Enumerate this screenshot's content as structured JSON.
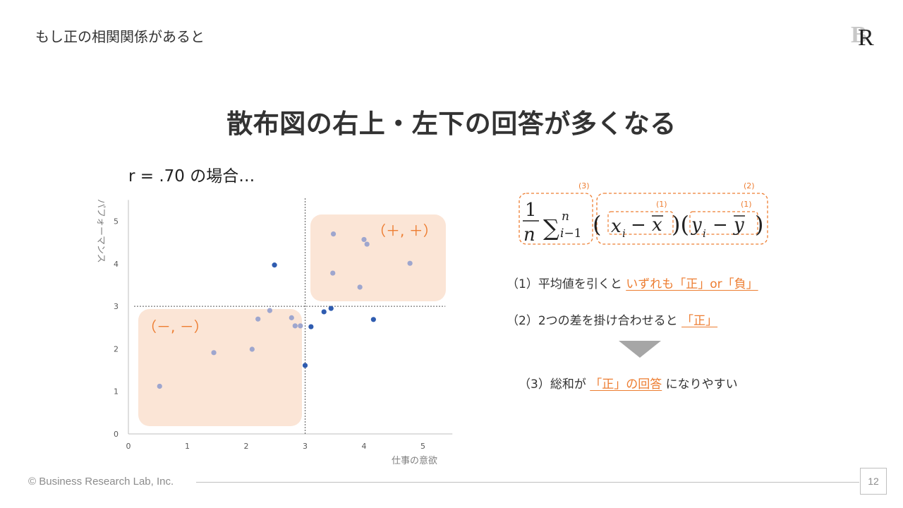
{
  "slide": {
    "title": "もし正の相関関係があると",
    "headline": "散布図の右上・左下の回答が多くなる",
    "case_label": "r = .70 の場合…",
    "page_number": "12",
    "copyright": "© Business Research Lab, Inc."
  },
  "quadrant_labels": {
    "positive": "（＋, ＋）",
    "negative": "（－, －）"
  },
  "formula": {
    "labels": {
      "outer": "(3)",
      "product": "(2)",
      "dev_x": "(1)",
      "dev_y": "(1)"
    }
  },
  "notes": [
    {
      "prefix": "（1）平均値を引くと ",
      "highlight": "いずれも「正」or「負」",
      "suffix": ""
    },
    {
      "prefix": "（2）2つの差を掛け合わせると ",
      "highlight": "「正」",
      "suffix": ""
    },
    {
      "prefix": "（3）総和が ",
      "highlight": "「正」の回答",
      "suffix": " になりやすい"
    }
  ],
  "colors": {
    "accent": "#ED7D31",
    "box_fill": "#FBE5D6",
    "point_light": "#9EA6CE",
    "point_dark": "#2F5CB0",
    "arrow": "#A6A6A6"
  },
  "chart_data": {
    "type": "scatter",
    "xlabel": "仕事の意欲",
    "ylabel": "パフォーマンス",
    "xlim": [
      0,
      5.5
    ],
    "ylim": [
      0,
      5.5
    ],
    "xticks": [
      0,
      1,
      2,
      3,
      4,
      5
    ],
    "yticks": [
      0,
      1,
      2,
      3,
      4,
      5
    ],
    "mean_x": 3.0,
    "mean_y": 3.0,
    "series": [
      {
        "points": [
          [
            0.53,
            1.12
          ],
          [
            1.45,
            1.91
          ],
          [
            2.1,
            1.99
          ],
          [
            2.2,
            2.7
          ],
          [
            2.4,
            2.9
          ],
          [
            2.77,
            2.73
          ],
          [
            2.83,
            2.54
          ],
          [
            2.92,
            2.54
          ],
          [
            3.48,
            4.7
          ],
          [
            3.47,
            3.78
          ],
          [
            4.0,
            4.57
          ],
          [
            4.05,
            4.46
          ],
          [
            3.93,
            3.45
          ],
          [
            4.78,
            4.01
          ]
        ]
      },
      {
        "points": [
          [
            2.48,
            3.97
          ],
          [
            3.0,
            1.61
          ],
          [
            3.1,
            2.52
          ],
          [
            3.32,
            2.87
          ],
          [
            3.44,
            2.95
          ],
          [
            4.16,
            2.69
          ]
        ]
      }
    ]
  }
}
